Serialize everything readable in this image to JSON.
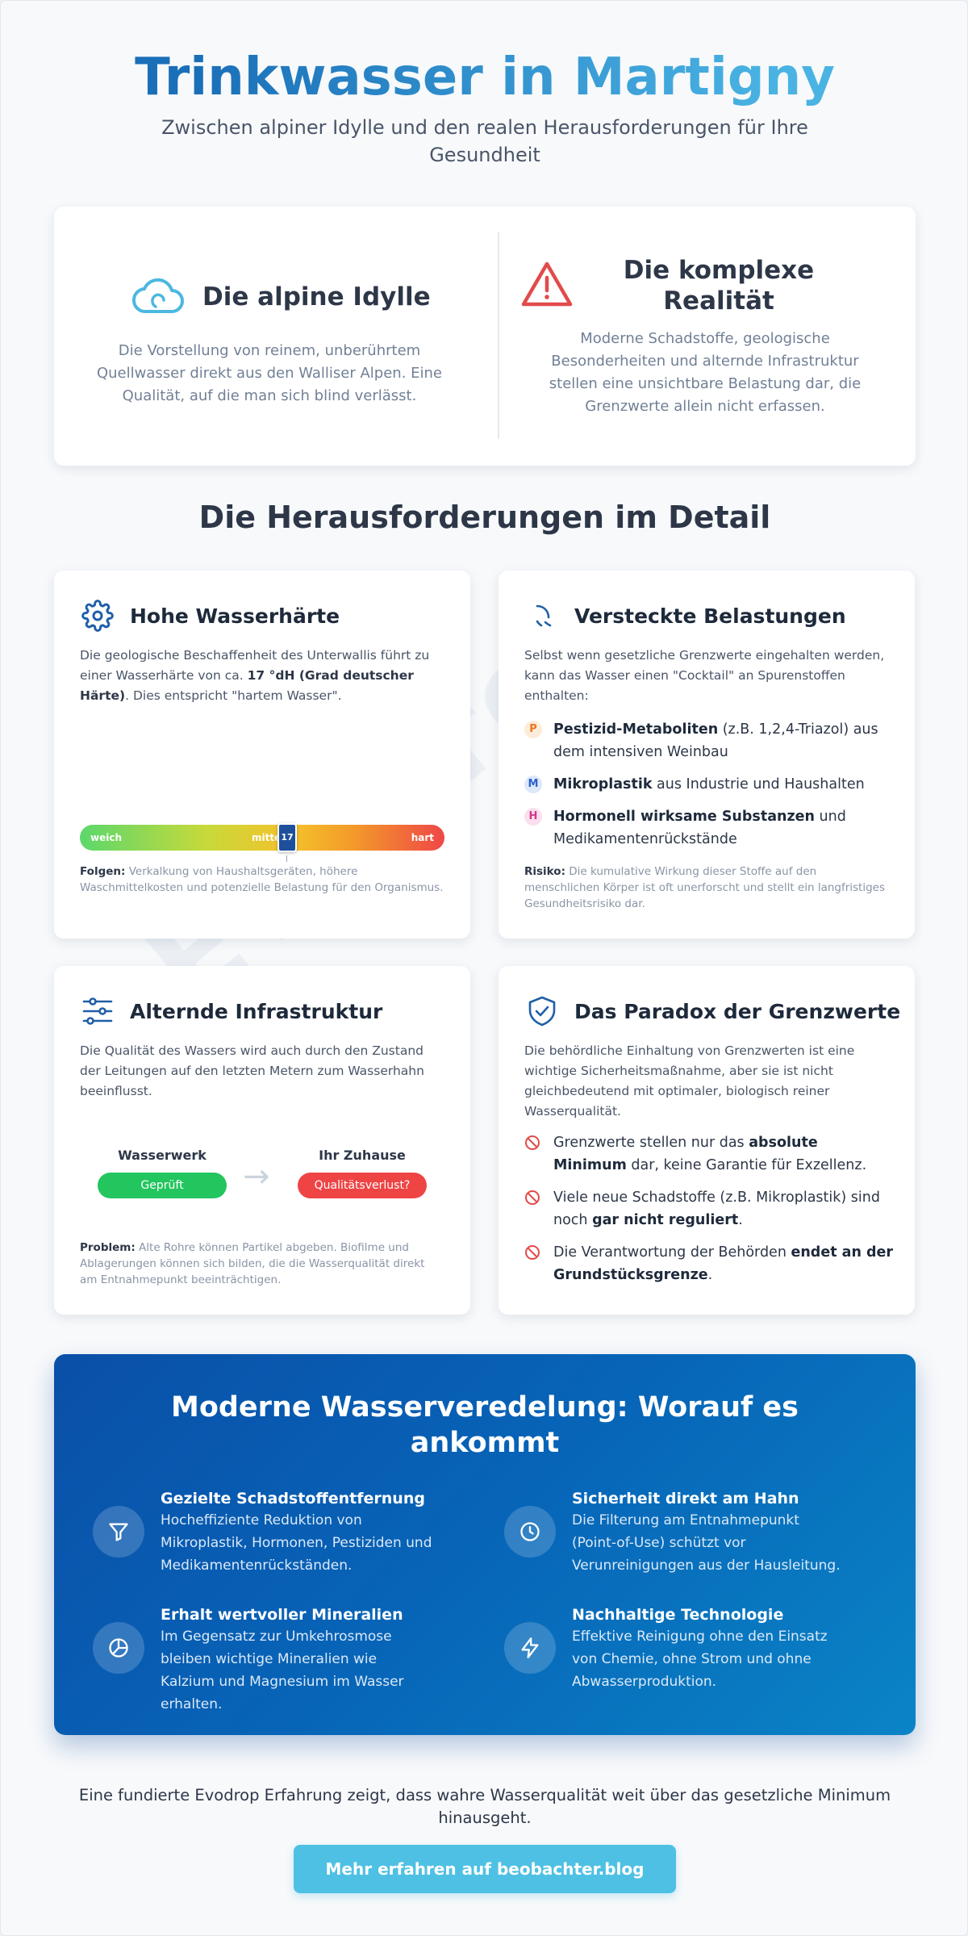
{
  "hero": {
    "title": "Trinkwasser in Martigny",
    "subtitle": "Zwischen alpiner Idylle und den realen Herausforderungen für Ihre Gesundheit"
  },
  "watermark": "Evodrop",
  "compare": {
    "idyll": {
      "icon": "cloud-icon",
      "title": "Die alpine Idylle",
      "text": "Die Vorstellung von reinem, unberührtem Quellwasser direkt aus den Walliser Alpen. Eine Qualität, auf die man sich blind verlässt."
    },
    "reality": {
      "icon": "warning-icon",
      "title": "Die komplexe Realität",
      "text": "Moderne Schadstoffe, geologische Besonderheiten und alternde Infrastruktur stellen eine unsichtbare Belastung dar, die Grenzwerte allein nicht erfassen."
    }
  },
  "detail_title": "Die Herausforderungen im Detail",
  "hardness": {
    "icon": "gear-icon",
    "title": "Hohe Wasserhärte",
    "intro_pre": "Die geologische Beschaffenheit des Unterwallis führt zu einer Wasserhärte von ca. ",
    "intro_bold": "17 °dH (Grad deutscher Härte)",
    "intro_post": ". Dies entspricht \"hartem Wasser\".",
    "scale_soft": "weich",
    "scale_mid": "mittel",
    "scale_hard": "hart",
    "marker_value": "17",
    "consequence_label": "Folgen:",
    "consequence_text": " Verkalkung von Haushaltsgeräten, höhere Waschmittelkosten und potenzielle Belastung für den Organismus."
  },
  "hidden": {
    "icon": "droplets-icon",
    "title": "Versteckte Belastungen",
    "intro": "Selbst wenn gesetzliche Grenzwerte eingehalten werden, kann das Wasser einen \"Cocktail\" an Spurenstoffen enthalten:",
    "items": [
      {
        "badge": "P",
        "bold": "Pestizid-Metaboliten",
        "rest": " (z.B. 1,2,4-Triazol) aus dem intensiven Weinbau",
        "color": "#e8741f",
        "bg": "#fdecd9"
      },
      {
        "badge": "M",
        "bold": "Mikroplastik",
        "rest": " aus Industrie und Haushalten",
        "color": "#2b62c9",
        "bg": "#dde8fb"
      },
      {
        "badge": "H",
        "bold": "Hormonell wirksame Substanzen",
        "rest": " und Medikamentenrückstände",
        "color": "#d03a8a",
        "bg": "#fbdfee"
      }
    ],
    "risk_label": "Risiko:",
    "risk_text": " Die kumulative Wirkung dieser Stoffe auf den menschlichen Körper ist oft unerforscht und stellt ein langfristiges Gesundheitsrisiko dar."
  },
  "infra": {
    "icon": "sliders-icon",
    "title": "Alternde Infrastruktur",
    "intro": "Die Qualität des Wassers wird auch durch den Zustand der Leitungen auf den letzten Metern zum Wasserhahn beeinflusst.",
    "from_label": "Wasserwerk",
    "from_status": "Geprüft",
    "to_label": "Ihr Zuhause",
    "to_status": "Qualitätsverlust?",
    "arrow": "→",
    "problem_label": "Problem:",
    "problem_text": " Alte Rohre können Partikel abgeben. Biofilme und Ablagerungen können sich bilden, die die Wasserqualität direkt am Entnahmepunkt beeinträchtigen.",
    "ok_color": "#22c55e",
    "bad_color": "#ef4444"
  },
  "paradox": {
    "icon": "shield-check-icon",
    "title": "Das Paradox der Grenzwerte",
    "intro": "Die behördliche Einhaltung von Grenzwerten ist eine wichtige Sicherheitsmaßnahme, aber sie ist nicht gleichbedeutend mit optimaler, biologisch reiner Wasserqualität.",
    "items": [
      {
        "pre": "Grenzwerte stellen nur das ",
        "bold": "absolute Minimum",
        "post": " dar, keine Garantie für Exzellenz."
      },
      {
        "pre": "Viele neue Schadstoffe (z.B. Mikroplastik) sind noch ",
        "bold": "gar nicht reguliert",
        "post": "."
      },
      {
        "pre": "Die Verantwortung der Behörden ",
        "bold": "endet an der Grundstücksgrenze",
        "post": "."
      }
    ]
  },
  "modern": {
    "title": "Moderne Wasserveredelung: Worauf es ankommt",
    "features": [
      {
        "icon": "filter-icon",
        "title": "Gezielte Schadstoffentfernung",
        "text": "Hocheffiziente Reduktion von Mikroplastik, Hormonen, Pestiziden und Medikamentenrückständen."
      },
      {
        "icon": "clock-icon",
        "title": "Sicherheit direkt am Hahn",
        "text": "Die Filterung am Entnahmepunkt (Point-of-Use) schützt vor Verunreinigungen aus der Hausleitung."
      },
      {
        "icon": "pie-chart-icon",
        "title": "Erhalt wertvoller Mineralien",
        "text": "Im Gegensatz zur Umkehrosmose bleiben wichtige Mineralien wie Kalzium und Magnesium im Wasser erhalten."
      },
      {
        "icon": "lightning-icon",
        "title": "Nachhaltige Technologie",
        "text": "Effektive Reinigung ohne den Einsatz von Chemie, ohne Strom und ohne Abwasserproduktion."
      }
    ]
  },
  "footer": {
    "text": "Eine fundierte Evodrop Erfahrung zeigt, dass wahre Wasserqualität weit über das gesetzliche Minimum hinausgeht.",
    "cta": "Mehr erfahren auf beobachter.blog"
  }
}
